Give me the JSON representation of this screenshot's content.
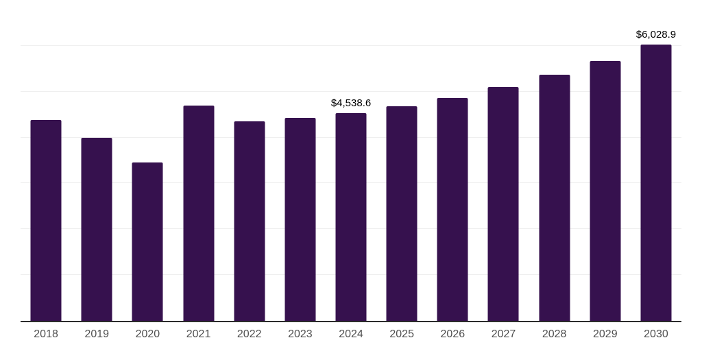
{
  "chart_data": {
    "type": "bar",
    "title": "",
    "xlabel": "",
    "ylabel": "",
    "categories": [
      "2018",
      "2019",
      "2020",
      "2021",
      "2022",
      "2023",
      "2024",
      "2025",
      "2026",
      "2027",
      "2028",
      "2029",
      "2030"
    ],
    "values": [
      4385,
      3990,
      3455,
      4695,
      4355,
      4425,
      4538.6,
      4685,
      4860,
      5100,
      5365,
      5675,
      6028.9
    ],
    "value_labels": {
      "2024": "$4,538.6",
      "2030": "$6,028.9"
    },
    "ylim": [
      0,
      7000
    ],
    "grid_step": 1000,
    "grid": true,
    "legend": "none",
    "colors": {
      "bar": "#36114e",
      "gridline": "#efefef",
      "axis": "#2b2b2b",
      "tick_label": "#4f4f4f",
      "data_label": "#000000",
      "background": "#ffffff"
    }
  }
}
